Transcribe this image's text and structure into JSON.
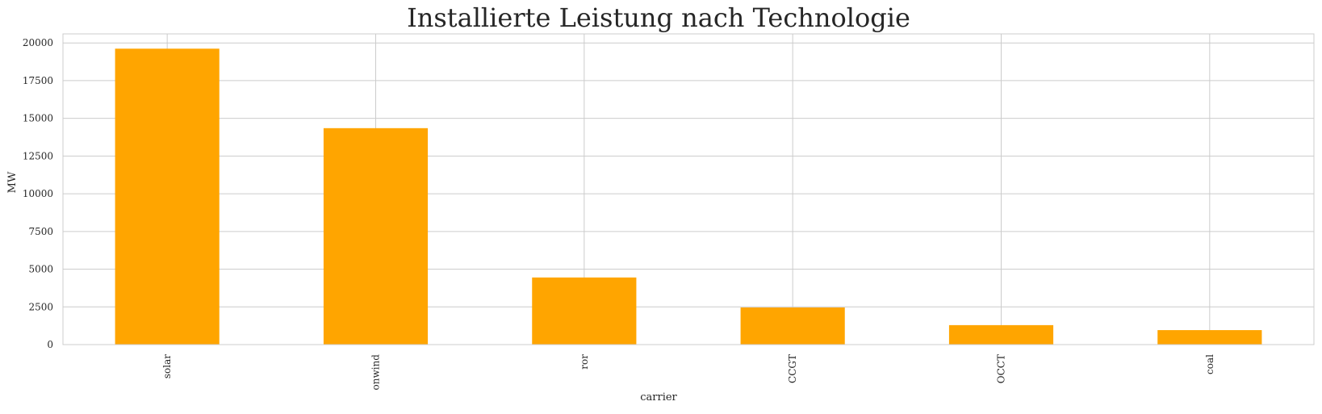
{
  "chart_data": {
    "type": "bar",
    "title": "Installierte Leistung nach Technologie",
    "xlabel": "carrier",
    "ylabel": "MW",
    "categories": [
      "solar",
      "onwind",
      "ror",
      "CCGT",
      "OCCT",
      "coal"
    ],
    "values": [
      19620,
      14350,
      4450,
      2460,
      1290,
      960
    ],
    "yticks": [
      "0",
      "2500",
      "5000",
      "7500",
      "10000",
      "12500",
      "15000",
      "17500",
      "20000"
    ],
    "ylim": [
      0,
      20600
    ],
    "grid": true,
    "bar_color": "#FFA500",
    "grid_color": "#cccccc",
    "frame_color": "#cccccc"
  }
}
